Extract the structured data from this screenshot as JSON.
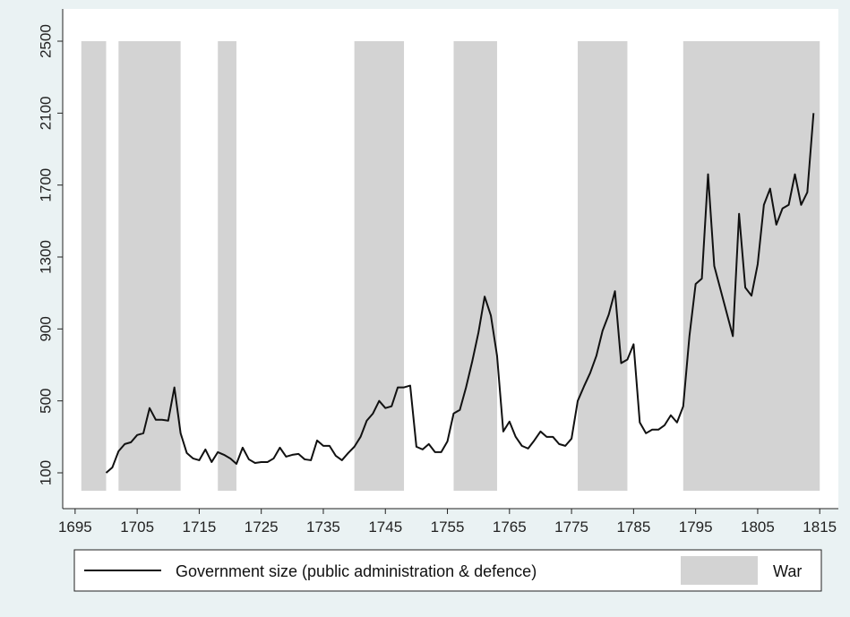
{
  "chart_data": {
    "type": "line",
    "title": "",
    "xlabel": "",
    "ylabel": "",
    "xlim": [
      1693,
      1818
    ],
    "ylim": [
      0,
      2580
    ],
    "x_ticks": [
      1695,
      1705,
      1715,
      1725,
      1735,
      1745,
      1755,
      1765,
      1775,
      1785,
      1795,
      1805,
      1815
    ],
    "y_ticks": [
      100,
      500,
      900,
      1300,
      1700,
      2100,
      2500
    ],
    "grid": false,
    "legend_placement": "bottom",
    "war_shading": {
      "name": "War",
      "color": "#d3d3d3",
      "y_range": [
        0,
        2500
      ],
      "periods": [
        [
          1696,
          1700
        ],
        [
          1702,
          1712
        ],
        [
          1718,
          1721
        ],
        [
          1740,
          1748
        ],
        [
          1756,
          1763
        ],
        [
          1776,
          1784
        ],
        [
          1793,
          1815
        ]
      ]
    },
    "series": [
      {
        "name": "Government size (public administration & defence)",
        "color": "#111111",
        "points": [
          [
            1700,
            100
          ],
          [
            1701,
            130
          ],
          [
            1702,
            220
          ],
          [
            1703,
            260
          ],
          [
            1704,
            270
          ],
          [
            1705,
            310
          ],
          [
            1706,
            320
          ],
          [
            1707,
            460
          ],
          [
            1708,
            395
          ],
          [
            1709,
            395
          ],
          [
            1710,
            390
          ],
          [
            1711,
            575
          ],
          [
            1712,
            320
          ],
          [
            1713,
            210
          ],
          [
            1714,
            180
          ],
          [
            1715,
            170
          ],
          [
            1716,
            230
          ],
          [
            1717,
            160
          ],
          [
            1718,
            215
          ],
          [
            1719,
            200
          ],
          [
            1720,
            180
          ],
          [
            1721,
            150
          ],
          [
            1722,
            240
          ],
          [
            1723,
            175
          ],
          [
            1724,
            155
          ],
          [
            1725,
            160
          ],
          [
            1726,
            160
          ],
          [
            1727,
            180
          ],
          [
            1728,
            240
          ],
          [
            1729,
            190
          ],
          [
            1730,
            200
          ],
          [
            1731,
            205
          ],
          [
            1732,
            175
          ],
          [
            1733,
            170
          ],
          [
            1734,
            280
          ],
          [
            1735,
            250
          ],
          [
            1736,
            250
          ],
          [
            1737,
            195
          ],
          [
            1738,
            170
          ],
          [
            1739,
            210
          ],
          [
            1740,
            245
          ],
          [
            1741,
            300
          ],
          [
            1742,
            390
          ],
          [
            1743,
            430
          ],
          [
            1744,
            500
          ],
          [
            1745,
            460
          ],
          [
            1746,
            470
          ],
          [
            1747,
            575
          ],
          [
            1748,
            575
          ],
          [
            1749,
            585
          ],
          [
            1750,
            245
          ],
          [
            1751,
            230
          ],
          [
            1752,
            260
          ],
          [
            1753,
            215
          ],
          [
            1754,
            215
          ],
          [
            1755,
            275
          ],
          [
            1756,
            430
          ],
          [
            1757,
            450
          ],
          [
            1758,
            575
          ],
          [
            1759,
            720
          ],
          [
            1760,
            880
          ],
          [
            1761,
            1080
          ],
          [
            1762,
            975
          ],
          [
            1763,
            750
          ],
          [
            1764,
            330
          ],
          [
            1765,
            385
          ],
          [
            1766,
            300
          ],
          [
            1767,
            250
          ],
          [
            1768,
            235
          ],
          [
            1769,
            280
          ],
          [
            1770,
            330
          ],
          [
            1771,
            300
          ],
          [
            1772,
            300
          ],
          [
            1773,
            260
          ],
          [
            1774,
            250
          ],
          [
            1775,
            290
          ],
          [
            1776,
            500
          ],
          [
            1777,
            580
          ],
          [
            1778,
            655
          ],
          [
            1779,
            750
          ],
          [
            1780,
            890
          ],
          [
            1781,
            980
          ],
          [
            1782,
            1110
          ],
          [
            1783,
            710
          ],
          [
            1784,
            730
          ],
          [
            1785,
            815
          ],
          [
            1786,
            380
          ],
          [
            1787,
            320
          ],
          [
            1788,
            340
          ],
          [
            1789,
            340
          ],
          [
            1790,
            365
          ],
          [
            1791,
            420
          ],
          [
            1792,
            380
          ],
          [
            1793,
            470
          ],
          [
            1794,
            860
          ],
          [
            1795,
            1150
          ],
          [
            1796,
            1180
          ],
          [
            1797,
            1760
          ],
          [
            1798,
            1250
          ],
          [
            1799,
            1120
          ],
          [
            1800,
            990
          ],
          [
            1801,
            860
          ],
          [
            1802,
            1540
          ],
          [
            1803,
            1130
          ],
          [
            1804,
            1085
          ],
          [
            1805,
            1260
          ],
          [
            1806,
            1590
          ],
          [
            1807,
            1680
          ],
          [
            1808,
            1480
          ],
          [
            1809,
            1570
          ],
          [
            1810,
            1590
          ],
          [
            1811,
            1760
          ],
          [
            1812,
            1590
          ],
          [
            1813,
            1660
          ],
          [
            1814,
            2100
          ]
        ]
      }
    ]
  }
}
